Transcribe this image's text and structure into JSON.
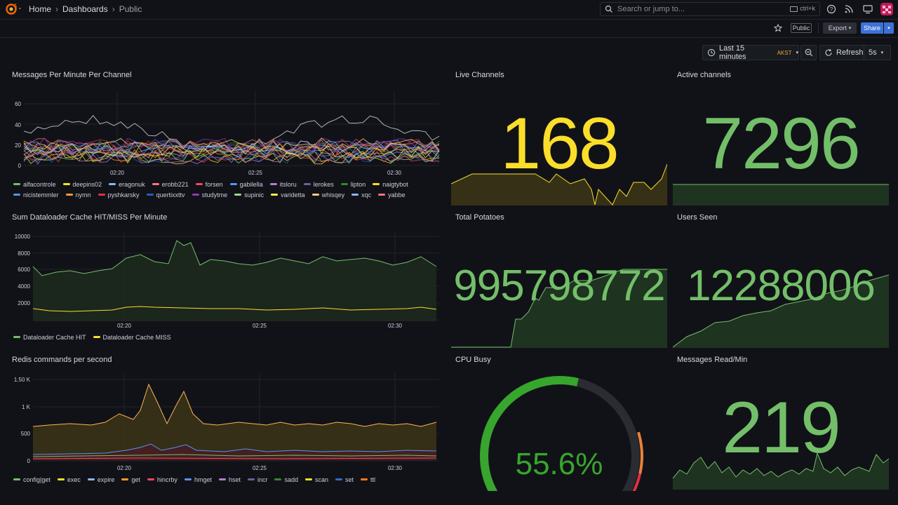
{
  "topbar": {
    "breadcrumb": [
      "Home",
      "Dashboards",
      "Public"
    ],
    "search_placeholder": "Search or jump to...",
    "search_shortcut": "ctrl+k"
  },
  "toolbar": {
    "public_badge": "Public",
    "export_label": "Export",
    "share_label": "Share",
    "time_range": "Last 15 minutes",
    "timezone": "AKST",
    "refresh_label": "Refresh",
    "refresh_interval": "5s"
  },
  "panels": {
    "messages_per_minute": {
      "title": "Messages Per Minute Per Channel",
      "yticks": [
        "60",
        "40",
        "20",
        "0"
      ],
      "xticks": [
        "02:20",
        "02:25",
        "02:30"
      ],
      "legend": [
        {
          "name": "alfacontrole",
          "color": "#73bf69"
        },
        {
          "name": "deepins02",
          "color": "#fade2a"
        },
        {
          "name": "eragonuk",
          "color": "#8ab8ff"
        },
        {
          "name": "erobb221",
          "color": "#ff7383"
        },
        {
          "name": "forsen",
          "color": "#f2495c"
        },
        {
          "name": "gabilella",
          "color": "#5794f2"
        },
        {
          "name": "itsloru",
          "color": "#b877d9"
        },
        {
          "name": "lerokes",
          "color": "#705da0"
        },
        {
          "name": "lipton",
          "color": "#37872d"
        },
        {
          "name": "naigtybot",
          "color": "#fade2a"
        },
        {
          "name": "nicistemmler",
          "color": "#5794f2"
        },
        {
          "name": "nymn",
          "color": "#ff9830"
        },
        {
          "name": "pyshkarsky",
          "color": "#e02f44"
        },
        {
          "name": "quertixxttv",
          "color": "#1f60c4"
        },
        {
          "name": "studytme",
          "color": "#8f3bb8"
        },
        {
          "name": "supinic",
          "color": "#96d98d"
        },
        {
          "name": "varidetta",
          "color": "#ffee52"
        },
        {
          "name": "whisqey",
          "color": "#ffcb7d"
        },
        {
          "name": "xqc",
          "color": "#8ab8ff"
        },
        {
          "name": "yabbe",
          "color": "#ff7383"
        }
      ]
    },
    "live_channels": {
      "title": "Live Channels",
      "value": "168",
      "color": "#fade2a"
    },
    "active_channels": {
      "title": "Active channels",
      "value": "7296",
      "color": "#73bf69"
    },
    "dataloader_cache": {
      "title": "Sum Dataloader Cache HIT/MISS Per Minute",
      "yticks": [
        "10000",
        "8000",
        "6000",
        "4000",
        "2000"
      ],
      "xticks": [
        "02:20",
        "02:25",
        "02:30"
      ],
      "legend": [
        {
          "name": "Dataloader Cache HIT",
          "color": "#73bf69"
        },
        {
          "name": "Dataloader Cache MISS",
          "color": "#fade2a"
        }
      ]
    },
    "total_potatoes": {
      "title": "Total Potatoes",
      "value": "995798772",
      "color": "#73bf69"
    },
    "users_seen": {
      "title": "Users Seen",
      "value": "12288006",
      "color": "#73bf69"
    },
    "redis_commands": {
      "title": "Redis commands per second",
      "yticks": [
        "1.50 K",
        "1 K",
        "500",
        "0"
      ],
      "xticks": [
        "02:20",
        "02:25",
        "02:30"
      ],
      "legend": [
        {
          "name": "config|get",
          "color": "#73bf69"
        },
        {
          "name": "exec",
          "color": "#fade2a"
        },
        {
          "name": "expire",
          "color": "#8ab8ff"
        },
        {
          "name": "get",
          "color": "#ff9830"
        },
        {
          "name": "hincrby",
          "color": "#f2495c"
        },
        {
          "name": "hmget",
          "color": "#5794f2"
        },
        {
          "name": "hset",
          "color": "#b877d9"
        },
        {
          "name": "incr",
          "color": "#705da0"
        },
        {
          "name": "sadd",
          "color": "#37872d"
        },
        {
          "name": "scan",
          "color": "#fade2a"
        },
        {
          "name": "set",
          "color": "#2f6ec7"
        },
        {
          "name": "ttl",
          "color": "#ff7a1a"
        }
      ]
    },
    "cpu_busy": {
      "title": "CPU Busy",
      "value": "55.6%",
      "percent": 55.6,
      "color": "#37a62d"
    },
    "messages_read": {
      "title": "Messages Read/Min",
      "value": "219",
      "color": "#73bf69"
    }
  }
}
